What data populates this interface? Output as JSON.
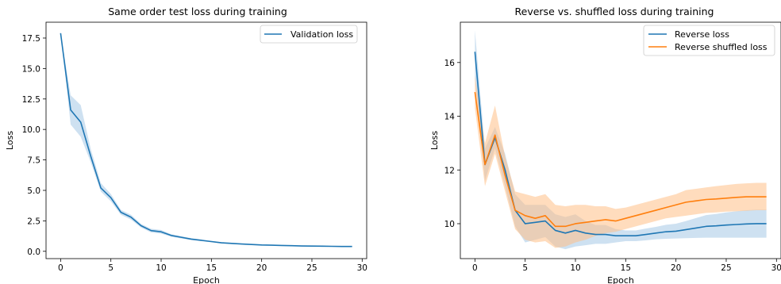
{
  "chart_data": [
    {
      "type": "line",
      "title": "Same order test loss during training",
      "xlabel": "Epoch",
      "ylabel": "Loss",
      "xlim": [
        -1.45,
        30.45
      ],
      "ylim": [
        -0.6,
        18.8
      ],
      "xticks": [
        0,
        5,
        10,
        15,
        20,
        25,
        30
      ],
      "yticks": [
        0.0,
        2.5,
        5.0,
        7.5,
        10.0,
        12.5,
        15.0,
        17.5
      ],
      "xtick_labels": [
        "0",
        "5",
        "10",
        "15",
        "20",
        "25",
        "30"
      ],
      "ytick_labels": [
        "0.0",
        "2.5",
        "5.0",
        "7.5",
        "10.0",
        "12.5",
        "15.0",
        "17.5"
      ],
      "legend_position": "top-right",
      "grid": false,
      "x": [
        0,
        1,
        2,
        3,
        4,
        5,
        6,
        7,
        8,
        9,
        10,
        11,
        12,
        13,
        14,
        15,
        16,
        17,
        18,
        19,
        20,
        21,
        22,
        23,
        24,
        25,
        26,
        27,
        28,
        29
      ],
      "series": [
        {
          "name": "Validation loss",
          "color": "#1f77b4",
          "band_color": "#a6c8e6",
          "values": [
            17.9,
            11.6,
            10.6,
            7.8,
            5.2,
            4.4,
            3.2,
            2.8,
            2.1,
            1.7,
            1.6,
            1.3,
            1.15,
            1.0,
            0.9,
            0.8,
            0.7,
            0.65,
            0.6,
            0.56,
            0.52,
            0.5,
            0.48,
            0.46,
            0.44,
            0.43,
            0.42,
            0.41,
            0.4,
            0.4
          ],
          "lower": [
            17.9,
            10.4,
            9.4,
            7.3,
            4.9,
            4.1,
            3.0,
            2.6,
            1.95,
            1.55,
            1.45,
            1.2,
            1.05,
            0.92,
            0.83,
            0.74,
            0.65,
            0.6,
            0.56,
            0.52,
            0.49,
            0.47,
            0.45,
            0.43,
            0.41,
            0.4,
            0.39,
            0.38,
            0.37,
            0.37
          ],
          "upper": [
            17.9,
            12.8,
            12.0,
            8.4,
            5.6,
            4.7,
            3.4,
            3.0,
            2.25,
            1.85,
            1.75,
            1.4,
            1.25,
            1.08,
            0.97,
            0.86,
            0.75,
            0.7,
            0.64,
            0.6,
            0.56,
            0.53,
            0.51,
            0.49,
            0.47,
            0.46,
            0.45,
            0.44,
            0.43,
            0.43
          ]
        }
      ]
    },
    {
      "type": "line",
      "title": "Reverse vs. shuffled loss during training",
      "xlabel": "Epoch",
      "ylabel": "Loss",
      "xlim": [
        -1.45,
        30.45
      ],
      "ylim": [
        8.7,
        17.5
      ],
      "xticks": [
        0,
        5,
        10,
        15,
        20,
        25,
        30
      ],
      "yticks": [
        10,
        12,
        14,
        16
      ],
      "xtick_labels": [
        "0",
        "5",
        "10",
        "15",
        "20",
        "25",
        "30"
      ],
      "ytick_labels": [
        "10",
        "12",
        "14",
        "16"
      ],
      "legend_position": "top-right",
      "grid": false,
      "x": [
        0,
        1,
        2,
        3,
        4,
        5,
        6,
        7,
        8,
        9,
        10,
        11,
        12,
        13,
        14,
        15,
        16,
        17,
        18,
        19,
        20,
        21,
        22,
        23,
        24,
        25,
        26,
        27,
        28,
        29
      ],
      "series": [
        {
          "name": "Reverse loss",
          "color": "#1f77b4",
          "band_color": "#a6c8e6",
          "values": [
            16.4,
            12.2,
            13.2,
            12.0,
            10.5,
            10.0,
            10.05,
            10.1,
            9.75,
            9.65,
            9.75,
            9.65,
            9.6,
            9.6,
            9.55,
            9.55,
            9.55,
            9.6,
            9.65,
            9.7,
            9.72,
            9.78,
            9.84,
            9.9,
            9.92,
            9.95,
            9.97,
            9.99,
            10.0,
            10.0
          ],
          "lower": [
            15.4,
            11.6,
            12.8,
            11.4,
            9.9,
            9.3,
            9.4,
            9.5,
            9.15,
            9.05,
            9.15,
            9.2,
            9.25,
            9.25,
            9.3,
            9.35,
            9.35,
            9.38,
            9.42,
            9.44,
            9.45,
            9.46,
            9.47,
            9.48,
            9.48,
            9.48,
            9.48,
            9.48,
            9.48,
            9.48
          ],
          "upper": [
            17.2,
            12.8,
            13.6,
            12.6,
            11.1,
            10.7,
            10.7,
            10.7,
            10.35,
            10.25,
            10.35,
            10.1,
            9.95,
            9.95,
            9.8,
            9.75,
            9.75,
            9.82,
            9.88,
            9.96,
            10.0,
            10.1,
            10.21,
            10.32,
            10.36,
            10.42,
            10.46,
            10.5,
            10.52,
            10.52
          ]
        },
        {
          "name": "Reverse shuffled loss",
          "color": "#ff7f0e",
          "band_color": "#ffbf86",
          "values": [
            14.9,
            12.2,
            13.3,
            11.8,
            10.5,
            10.3,
            10.2,
            10.3,
            9.9,
            9.9,
            10.0,
            10.05,
            10.1,
            10.15,
            10.1,
            10.2,
            10.3,
            10.4,
            10.5,
            10.6,
            10.7,
            10.8,
            10.85,
            10.9,
            10.92,
            10.95,
            10.98,
            11.0,
            11.0,
            11.0
          ],
          "lower": [
            14.3,
            11.4,
            12.6,
            11.2,
            9.8,
            9.4,
            9.3,
            9.35,
            9.1,
            9.15,
            9.3,
            9.4,
            9.55,
            9.65,
            9.7,
            9.8,
            9.9,
            10.0,
            10.1,
            10.2,
            10.25,
            10.3,
            10.35,
            10.4,
            10.42,
            10.45,
            10.46,
            10.48,
            10.5,
            10.5
          ],
          "upper": [
            15.5,
            13.0,
            14.4,
            12.5,
            11.2,
            11.1,
            11.0,
            11.1,
            10.7,
            10.65,
            10.7,
            10.7,
            10.65,
            10.65,
            10.55,
            10.6,
            10.7,
            10.8,
            10.9,
            11.0,
            11.1,
            11.25,
            11.3,
            11.35,
            11.4,
            11.44,
            11.48,
            11.5,
            11.52,
            11.52
          ]
        }
      ]
    }
  ]
}
